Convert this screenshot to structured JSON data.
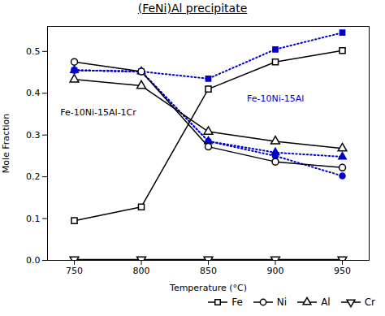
{
  "chart_data": {
    "type": "line",
    "title": "(FeNi)Al precipitate",
    "xlabel": "Temperature (°C)",
    "ylabel": "Mole Fraction",
    "x": [
      750,
      800,
      850,
      900,
      950
    ],
    "series": [
      {
        "name": "Fe",
        "color": "#000000",
        "marker": "square_open",
        "line_style": "solid",
        "values": [
          0.095,
          0.128,
          0.41,
          0.475,
          0.502
        ]
      },
      {
        "name": "Ni",
        "color": "#000000",
        "marker": "circle_open",
        "line_style": "solid",
        "values": [
          0.475,
          0.452,
          0.272,
          0.236,
          0.222
        ]
      },
      {
        "name": "Al",
        "color": "#000000",
        "marker": "triangle_up_open",
        "line_style": "solid",
        "values": [
          0.433,
          0.418,
          0.308,
          0.285,
          0.268
        ]
      },
      {
        "name": "Cr",
        "color": "#000000",
        "marker": "triangle_down_open",
        "line_style": "solid",
        "values": [
          0.002,
          0.002,
          0.002,
          0.002,
          0.002
        ]
      },
      {
        "name": "Fe",
        "color": "#0000cc",
        "marker": "square",
        "line_style": "dotted",
        "values": [
          0.455,
          0.452,
          0.435,
          0.505,
          0.545
        ]
      },
      {
        "name": "Ni",
        "color": "#0000cc",
        "marker": "circle",
        "line_style": "dotted",
        "values": [
          0.455,
          0.452,
          0.285,
          0.25,
          0.202
        ]
      },
      {
        "name": "Al",
        "color": "#0000cc",
        "marker": "triangle_up",
        "line_style": "dotted",
        "values": [
          0.455,
          0.452,
          0.285,
          0.258,
          0.248
        ]
      }
    ],
    "xlim": [
      730,
      970
    ],
    "xticks": [
      750,
      800,
      850,
      900,
      950
    ],
    "ylim": [
      0.0,
      0.56
    ],
    "yticks": [
      {
        "value": 0.0,
        "label": "0.0"
      },
      0.1,
      0.2,
      0.3,
      0.4,
      0.5
    ],
    "grid": false,
    "legend": "lower right",
    "annotations": [
      {
        "text": "Fe-10Ni-15Al-1Cr",
        "color": "#000000"
      },
      {
        "text": "Fe-10Ni-15Al",
        "color": "#0000cc"
      }
    ]
  }
}
